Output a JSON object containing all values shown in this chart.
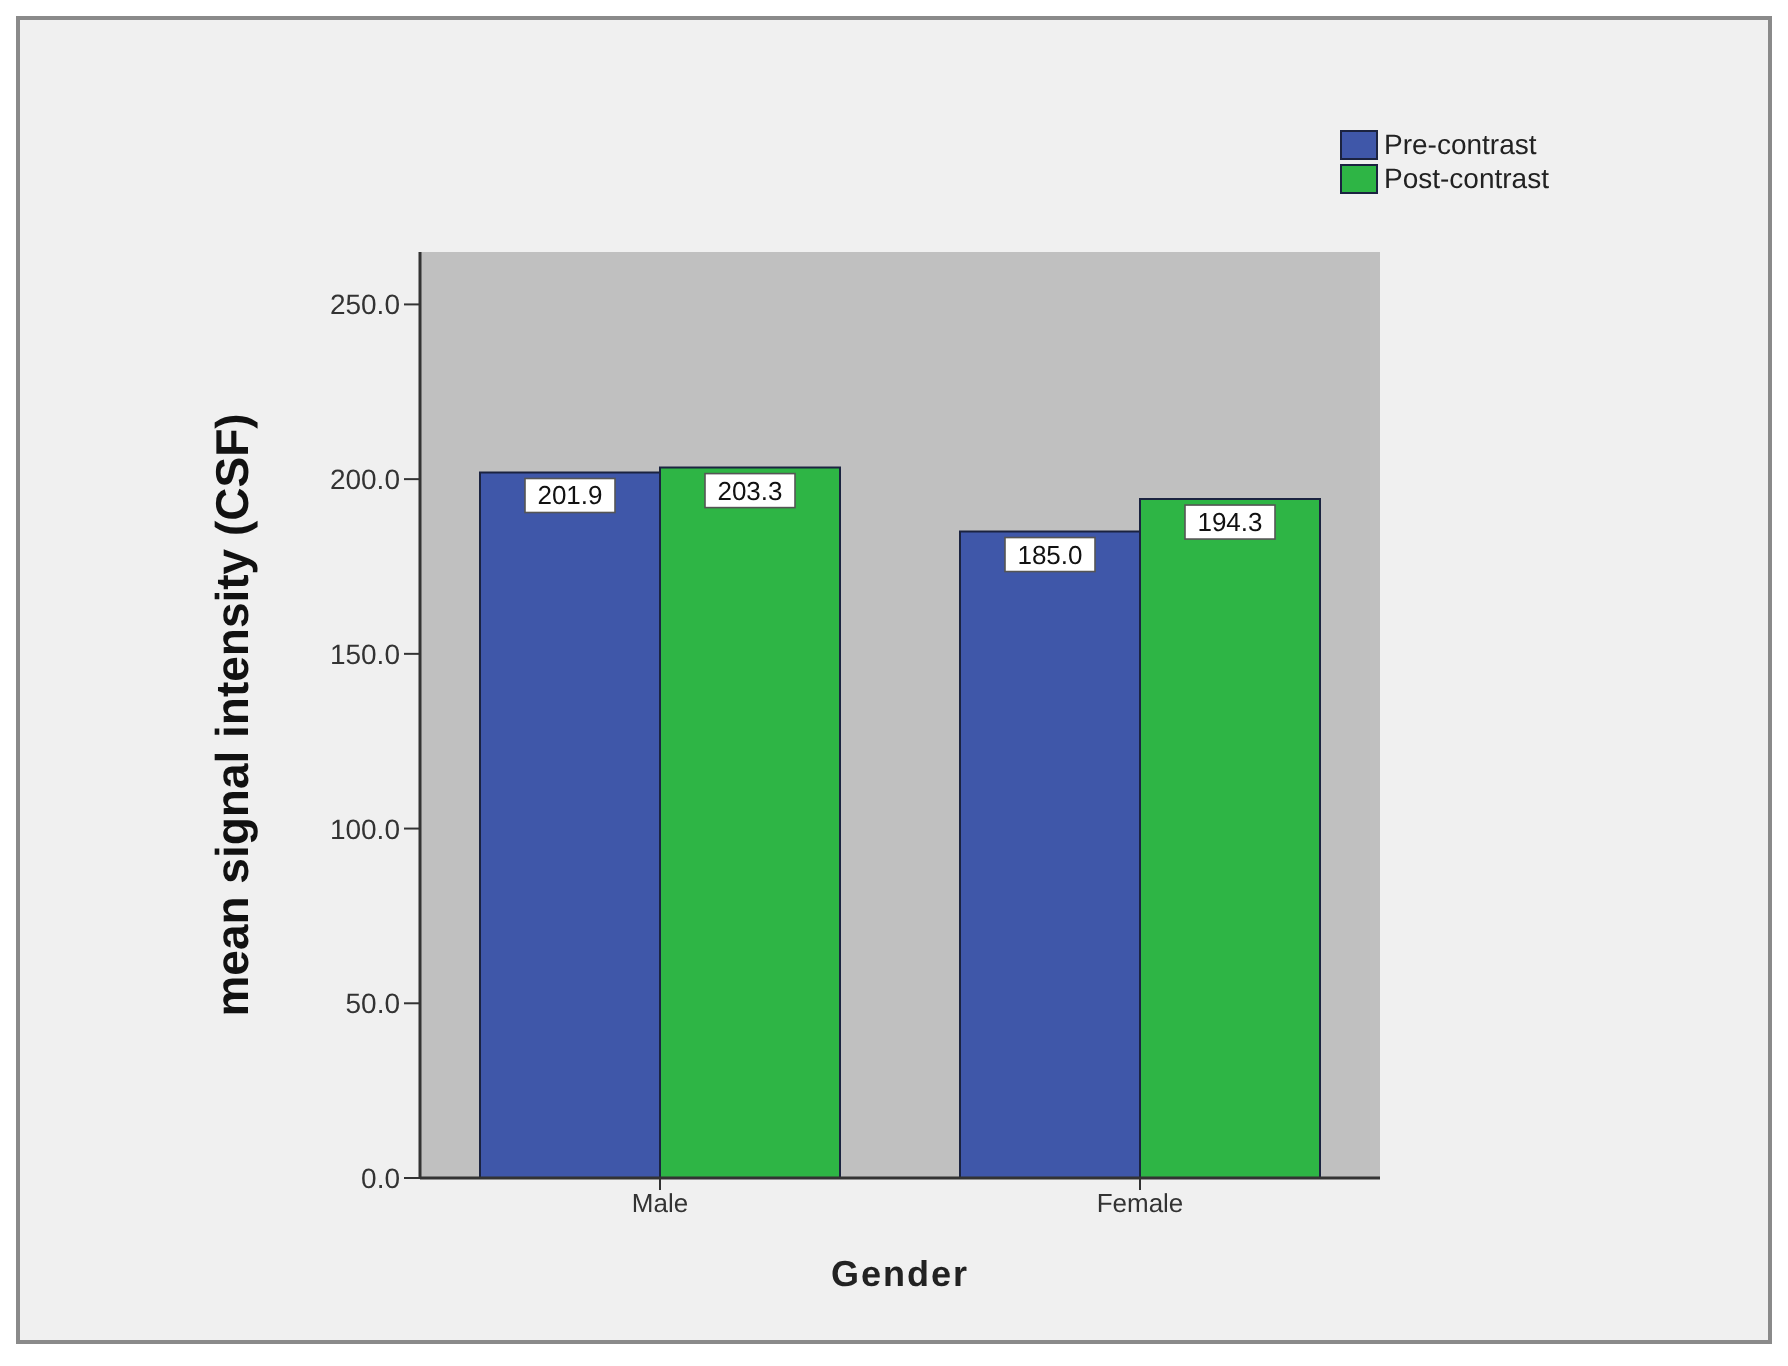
{
  "chart_data": {
    "type": "bar",
    "xlabel": "Gender",
    "ylabel": "mean signal intensity (CSF)",
    "categories": [
      "Male",
      "Female"
    ],
    "series": [
      {
        "name": "Pre-contrast",
        "color": "#3f57a9",
        "values": [
          201.9,
          185.0
        ],
        "value_labels": [
          "201.9",
          "185.0"
        ]
      },
      {
        "name": "Post-contrast",
        "color": "#2eb545",
        "values": [
          203.3,
          194.3
        ],
        "value_labels": [
          "203.3",
          "194.3"
        ]
      }
    ],
    "ylim": [
      0,
      265
    ],
    "yticks": [
      {
        "value": 0,
        "label": "0.0"
      },
      {
        "value": 50,
        "label": "50.0"
      },
      {
        "value": 100,
        "label": "100.0"
      },
      {
        "value": 150,
        "label": "150.0"
      },
      {
        "value": 200,
        "label": "200.0"
      },
      {
        "value": 250,
        "label": "250.0"
      }
    ],
    "legend": "top right"
  }
}
